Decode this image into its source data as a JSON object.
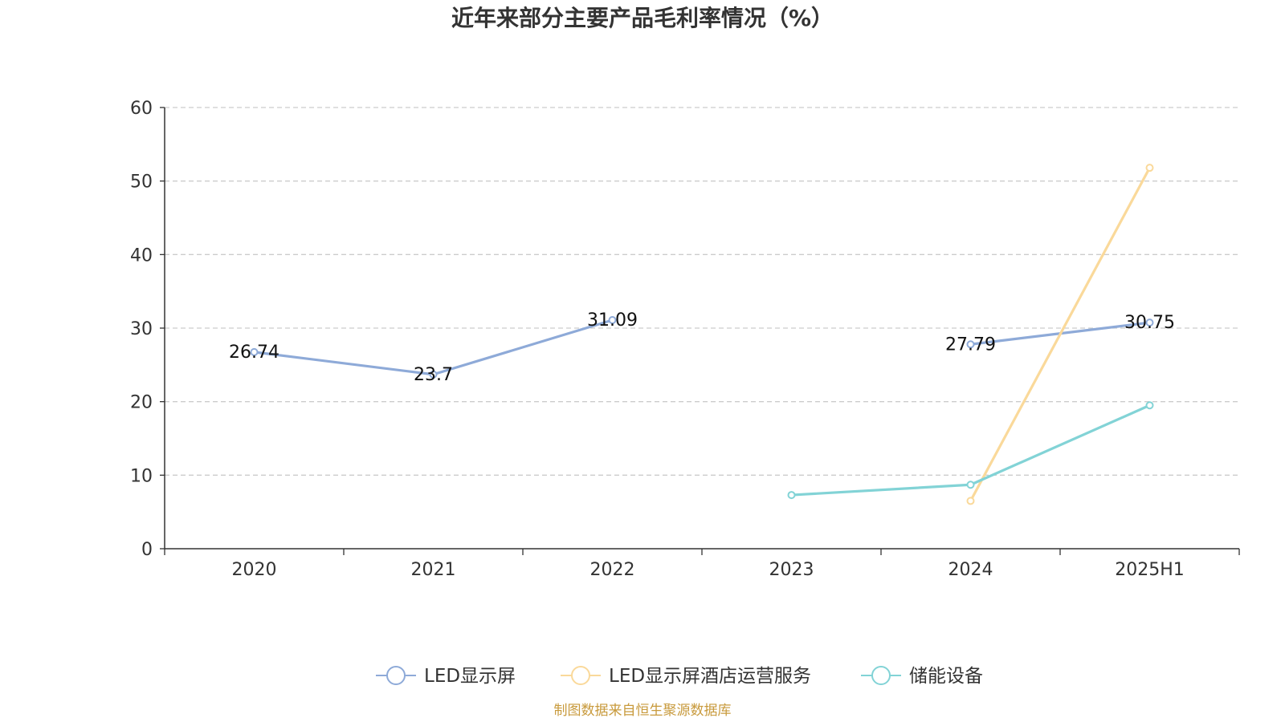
{
  "colors": {
    "series": [
      "#8eaad8",
      "#fad99a",
      "#82d3d6"
    ],
    "axis": "#333333",
    "grid": "#cccccc",
    "source": "#c89a3c"
  },
  "source_text": "制图数据来自恒生聚源数据库",
  "chart_data": {
    "type": "line",
    "title": "近年来部分主要产品毛利率情况（%）",
    "categories": [
      "2020",
      "2021",
      "2022",
      "2023",
      "2024",
      "2025H1"
    ],
    "y_ticks": [
      "0",
      "10",
      "20",
      "30",
      "40",
      "50",
      "60"
    ],
    "ylim": [
      0,
      60
    ],
    "grid": true,
    "legend_position": "bottom",
    "series": [
      {
        "name": "LED显示屏",
        "values": [
          26.74,
          23.7,
          31.09,
          null,
          27.79,
          30.75
        ],
        "labels": [
          "26.74",
          "23.7",
          "31.09",
          null,
          "27.79",
          "30.75"
        ]
      },
      {
        "name": "LED显示屏酒店运营服务",
        "values": [
          null,
          null,
          null,
          null,
          6.5,
          51.8
        ]
      },
      {
        "name": "储能设备",
        "values": [
          null,
          null,
          null,
          7.3,
          8.7,
          19.5
        ]
      }
    ]
  }
}
